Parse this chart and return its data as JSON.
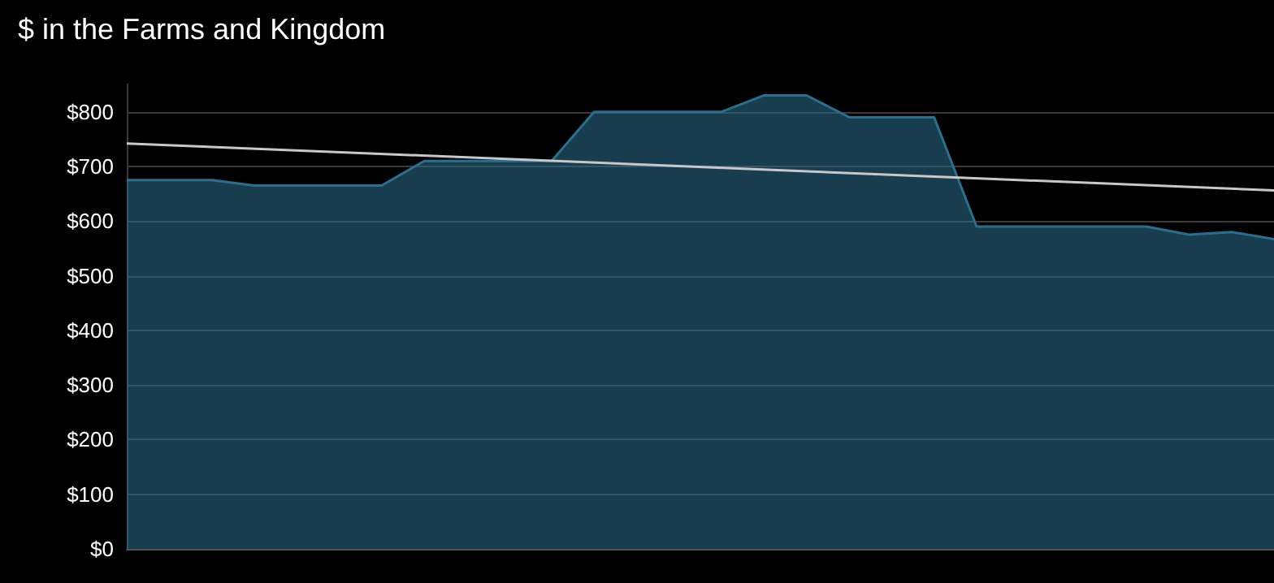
{
  "chart_data": {
    "type": "area",
    "title": "$ in the Farms and Kingdom",
    "categories": [
      null,
      null,
      null,
      null,
      null,
      null,
      null,
      null,
      null,
      null,
      null,
      null,
      null,
      null,
      null,
      null,
      null,
      null,
      null,
      null,
      null,
      null,
      null,
      null,
      null,
      null,
      null,
      null
    ],
    "series": [
      {
        "color": "#2b6f8e",
        "values": [
          675,
          675,
          675,
          665,
          665,
          665,
          665,
          710,
          710,
          710,
          710,
          800,
          800,
          800,
          800,
          830,
          830,
          790,
          790,
          790,
          590,
          590,
          590,
          590,
          590,
          575,
          580,
          567
        ]
      },
      {
        "type": "line",
        "color": "#c8c8c8",
        "values": [
          742,
          null,
          null,
          null,
          null,
          null,
          null,
          null,
          null,
          null,
          null,
          null,
          null,
          null,
          null,
          null,
          null,
          null,
          null,
          null,
          null,
          null,
          null,
          null,
          null,
          null,
          null,
          656
        ]
      }
    ],
    "ylim": [
      0,
      850
    ],
    "yticks": [
      {
        "value": 0,
        "label": "$0"
      },
      {
        "value": 100,
        "label": "$100"
      },
      {
        "value": 200,
        "label": "$200"
      },
      {
        "value": 300,
        "label": "$300"
      },
      {
        "value": 400,
        "label": "$400"
      },
      {
        "value": 500,
        "label": "$500"
      },
      {
        "value": 600,
        "label": "$600"
      },
      {
        "value": 700,
        "label": "$700"
      },
      {
        "value": 800,
        "label": "$800"
      }
    ],
    "grid": "y",
    "marker": "none"
  }
}
